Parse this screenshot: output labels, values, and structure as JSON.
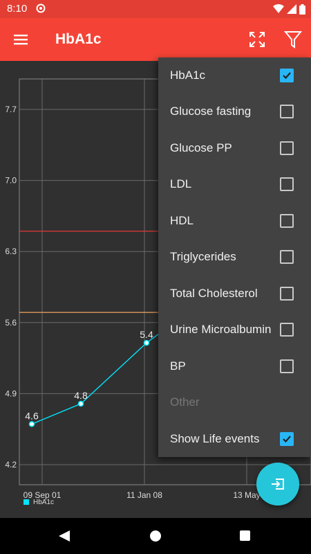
{
  "status_bar": {
    "time": "8:10"
  },
  "app_bar": {
    "title": "HbA1c"
  },
  "dropdown": {
    "items": [
      {
        "label": "HbA1c",
        "checked": true
      },
      {
        "label": "Glucose fasting",
        "checked": false
      },
      {
        "label": "Glucose PP",
        "checked": false
      },
      {
        "label": "LDL",
        "checked": false
      },
      {
        "label": "HDL",
        "checked": false
      },
      {
        "label": "Triglycerides",
        "checked": false
      },
      {
        "label": "Total Cholesterol",
        "checked": false
      },
      {
        "label": "Urine Microalbumin",
        "checked": false
      },
      {
        "label": "BP",
        "checked": false
      },
      {
        "label": "Other",
        "disabled": true
      },
      {
        "label": "Show Life events",
        "checked": true
      }
    ]
  },
  "chart_data": {
    "type": "line",
    "y_ticks": [
      "7.7",
      "7.0",
      "6.3",
      "5.6",
      "4.9",
      "4.2"
    ],
    "x_ticks": [
      "09 Sep 01",
      "11 Jan 08",
      "13 May"
    ],
    "series": [
      {
        "name": "HbA1c",
        "color": "#00e5ff",
        "points": [
          4.6,
          4.8,
          5.4
        ],
        "labels": [
          "4.6",
          "4.8",
          "5.4"
        ]
      }
    ],
    "reference_lines": [
      {
        "value": 6.5,
        "color": "#e53935"
      },
      {
        "value": 5.7,
        "color": "#f4a460"
      }
    ]
  },
  "legend": {
    "label": "HbA1c"
  },
  "colors": {
    "accent": "#f44336",
    "status": "#e33e33",
    "checkbox": "#29b6f6",
    "fab": "#26c6da"
  }
}
